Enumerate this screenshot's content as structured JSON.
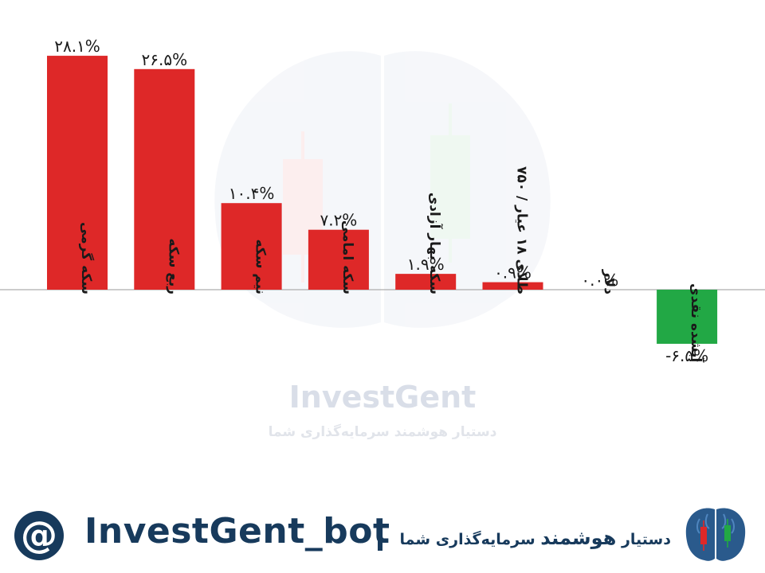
{
  "chart_data": {
    "type": "bar",
    "categories": [
      "سکه گرمی",
      "ربع سکه",
      "نیم سکه",
      "سکه امامی",
      "سکه بهار آزادی",
      "طلای ۱۸ عیار / ۷۵۰",
      "دلار",
      "آبشده نقدی"
    ],
    "values": [
      28.1,
      26.5,
      10.4,
      7.2,
      1.9,
      0.9,
      0.0,
      -6.5
    ],
    "value_labels": [
      "۲۸.۱%",
      "۲۶.۵%",
      "۱۰.۴%",
      "۷.۲%",
      "۱.۹%",
      "۰.۹%",
      "۰.۰%",
      "-۶.۵%"
    ],
    "colors": {
      "positive": "#de2828",
      "negative": "#22a845"
    },
    "title": "",
    "xlabel": "",
    "ylabel": "",
    "ylim": [
      -6.5,
      28.1
    ],
    "grid": false,
    "legend": "none"
  },
  "watermark": {
    "title": "InvestGent",
    "subtitle": "دستیار هوشمند سرمایه‌گذاری  شما"
  },
  "footer": {
    "at_symbol": "@",
    "bot_handle": "InvestGent_bot",
    "tagline_prefix": "دستیار",
    "tagline_strong": "هوشمند",
    "tagline_suffix": "سرمایه‌گذاری  شما",
    "brand_color": "#173a5c",
    "logo_icon": "brain-candlestick-icon"
  }
}
